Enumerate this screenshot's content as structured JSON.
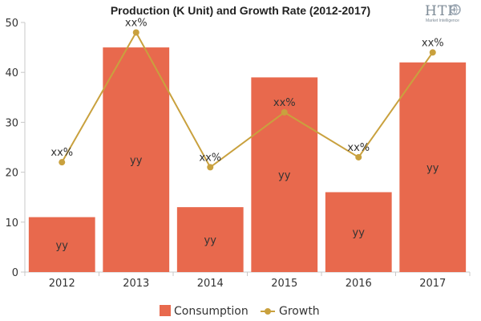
{
  "chart_data": {
    "type": "bar",
    "title": "Production (K Unit) and Growth Rate (2012-2017)",
    "categories": [
      "2012",
      "2013",
      "2014",
      "2015",
      "2016",
      "2017"
    ],
    "ylim": [
      0,
      50
    ],
    "yticks": [
      "0",
      "10",
      "20",
      "30",
      "40",
      "50"
    ],
    "grid": false,
    "legend_position": "bottom-center",
    "series": [
      {
        "name": "Consumption",
        "type": "bar",
        "color": "#e8694d",
        "values": [
          11,
          45,
          13,
          39,
          16,
          42
        ],
        "labels": [
          "yy",
          "yy",
          "yy",
          "yy",
          "yy",
          "yy"
        ]
      },
      {
        "name": "Growth",
        "type": "line",
        "color": "#c9a13e",
        "values": [
          22,
          48,
          21,
          32,
          23,
          44
        ],
        "labels": [
          "xx%",
          "xx%",
          "xx%",
          "xx%",
          "xx%",
          "xx%"
        ]
      }
    ]
  },
  "logo": {
    "main": "HTF",
    "sub": "Market Intelligence"
  }
}
